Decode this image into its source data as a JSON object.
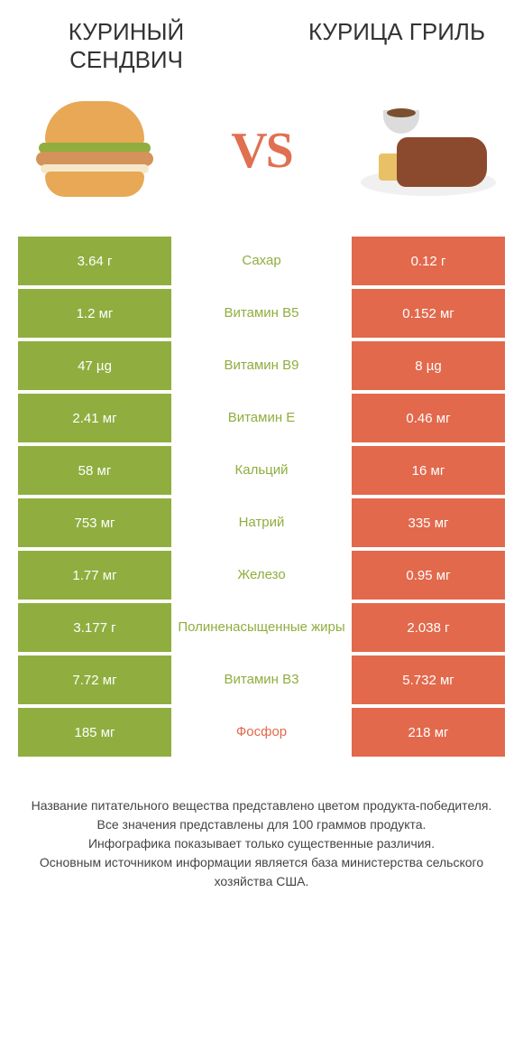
{
  "header": {
    "left_title": "КУРИНЫЙ СЕНДВИЧ",
    "right_title": "КУРИЦА ГРИЛЬ",
    "vs": "VS"
  },
  "colors": {
    "left": "#8fae3f",
    "right": "#e2694c",
    "left_text": "#8fae3f",
    "right_text": "#e2694c",
    "row_bg": "#ffffff"
  },
  "fonts": {
    "title_size": 26,
    "vs_size": 56,
    "cell_size": 15,
    "footer_size": 14
  },
  "rows": [
    {
      "left": "3.64 г",
      "label": "Сахар",
      "right": "0.12 г",
      "winner": "left"
    },
    {
      "left": "1.2 мг",
      "label": "Витамин B5",
      "right": "0.152 мг",
      "winner": "left"
    },
    {
      "left": "47 µg",
      "label": "Витамин B9",
      "right": "8 µg",
      "winner": "left"
    },
    {
      "left": "2.41 мг",
      "label": "Витамин E",
      "right": "0.46 мг",
      "winner": "left"
    },
    {
      "left": "58 мг",
      "label": "Кальций",
      "right": "16 мг",
      "winner": "left"
    },
    {
      "left": "753 мг",
      "label": "Натрий",
      "right": "335 мг",
      "winner": "left"
    },
    {
      "left": "1.77 мг",
      "label": "Железо",
      "right": "0.95 мг",
      "winner": "left"
    },
    {
      "left": "3.177 г",
      "label": "Полиненасыщенные жиры",
      "right": "2.038 г",
      "winner": "left"
    },
    {
      "left": "7.72 мг",
      "label": "Витамин B3",
      "right": "5.732 мг",
      "winner": "left"
    },
    {
      "left": "185 мг",
      "label": "Фосфор",
      "right": "218 мг",
      "winner": "right"
    }
  ],
  "footer": {
    "line1": "Название питательного вещества представлено цветом продукта-победителя.",
    "line2": "Все значения представлены для 100 граммов продукта.",
    "line3": "Инфографика показывает только существенные различия.",
    "line4": "Основным источником информации является база министерства сельского хозяйства США."
  }
}
